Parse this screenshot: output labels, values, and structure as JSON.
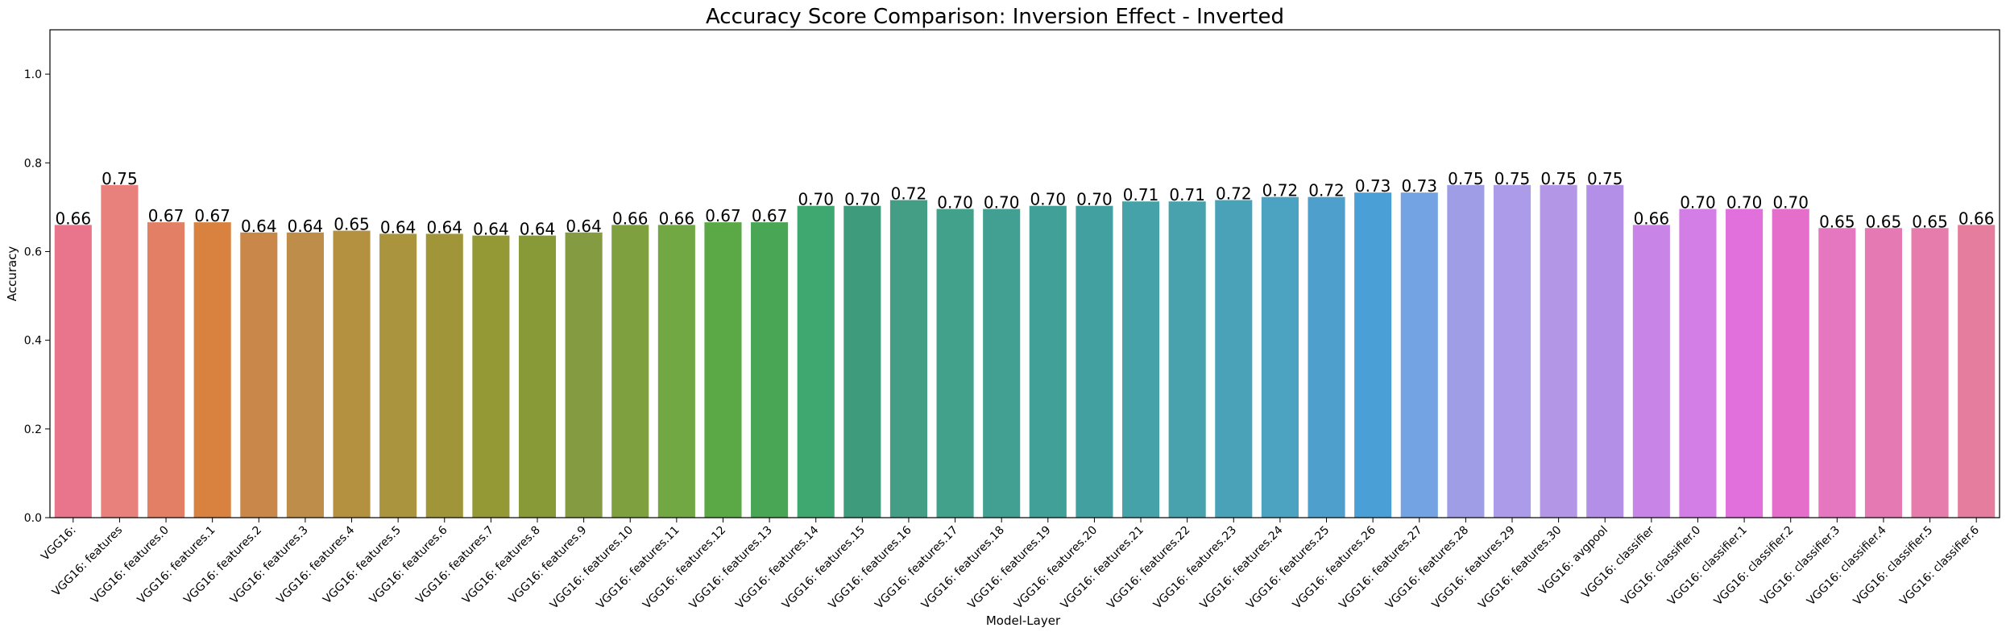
{
  "chart_data": {
    "type": "bar",
    "title": "Accuracy Score Comparison: Inversion Effect - Inverted",
    "xlabel": "Model-Layer",
    "ylabel": "Accuracy",
    "ylim": [
      0,
      1.1
    ],
    "yticks": [
      "0.0",
      "0.2",
      "0.4",
      "0.6",
      "0.8",
      "1.0"
    ],
    "grid": false,
    "legend": "none",
    "categories": [
      "VGG16: ",
      "VGG16: features",
      "VGG16: features.0",
      "VGG16: features.1",
      "VGG16: features.2",
      "VGG16: features.3",
      "VGG16: features.4",
      "VGG16: features.5",
      "VGG16: features.6",
      "VGG16: features.7",
      "VGG16: features.8",
      "VGG16: features.9",
      "VGG16: features.10",
      "VGG16: features.11",
      "VGG16: features.12",
      "VGG16: features.13",
      "VGG16: features.14",
      "VGG16: features.15",
      "VGG16: features.16",
      "VGG16: features.17",
      "VGG16: features.18",
      "VGG16: features.19",
      "VGG16: features.20",
      "VGG16: features.21",
      "VGG16: features.22",
      "VGG16: features.23",
      "VGG16: features.24",
      "VGG16: features.25",
      "VGG16: features.26",
      "VGG16: features.27",
      "VGG16: features.28",
      "VGG16: features.29",
      "VGG16: features.30",
      "VGG16: avgpool",
      "VGG16: classifier",
      "VGG16: classifier.0",
      "VGG16: classifier.1",
      "VGG16: classifier.2",
      "VGG16: classifier.3",
      "VGG16: classifier.4",
      "VGG16: classifier.5",
      "VGG16: classifier.6"
    ],
    "values": [
      0.66,
      0.75,
      0.666,
      0.666,
      0.643,
      0.643,
      0.647,
      0.64,
      0.64,
      0.636,
      0.636,
      0.643,
      0.66,
      0.66,
      0.666,
      0.666,
      0.703,
      0.703,
      0.716,
      0.696,
      0.696,
      0.703,
      0.703,
      0.713,
      0.713,
      0.716,
      0.723,
      0.723,
      0.733,
      0.733,
      0.75,
      0.75,
      0.75,
      0.75,
      0.66,
      0.696,
      0.696,
      0.696,
      0.653,
      0.653,
      0.653,
      0.66
    ],
    "value_labels": [
      "0.66",
      "0.75",
      "0.67",
      "0.67",
      "0.64",
      "0.64",
      "0.65",
      "0.64",
      "0.64",
      "0.64",
      "0.64",
      "0.64",
      "0.66",
      "0.66",
      "0.67",
      "0.67",
      "0.70",
      "0.70",
      "0.72",
      "0.70",
      "0.70",
      "0.70",
      "0.70",
      "0.71",
      "0.71",
      "0.72",
      "0.72",
      "0.72",
      "0.73",
      "0.73",
      "0.75",
      "0.75",
      "0.75",
      "0.75",
      "0.66",
      "0.70",
      "0.70",
      "0.70",
      "0.65",
      "0.65",
      "0.65",
      "0.66"
    ],
    "colors": [
      "#e8758c",
      "#e8807c",
      "#e27f65",
      "#d98240",
      "#c9884a",
      "#bd8d49",
      "#b39141",
      "#aa943e",
      "#a09639",
      "#949835",
      "#889a37",
      "#859b41",
      "#7fa03f",
      "#72a844",
      "#5ba846",
      "#49a654",
      "#3fa770",
      "#3e9c7c",
      "#449e85",
      "#42a18b",
      "#41a092",
      "#41a097",
      "#42a1a0",
      "#45a2a8",
      "#47a2ae",
      "#49a2b8",
      "#4ba3c1",
      "#4e9fcb",
      "#4b9fd7",
      "#73a3e3",
      "#9e9de6",
      "#ab9be8",
      "#b397e6",
      "#b38fe8",
      "#c884e6",
      "#d27ee6",
      "#e16fdc",
      "#e46ec9",
      "#e577c0",
      "#e579b4",
      "#e67cab",
      "#e57e9e"
    ]
  }
}
